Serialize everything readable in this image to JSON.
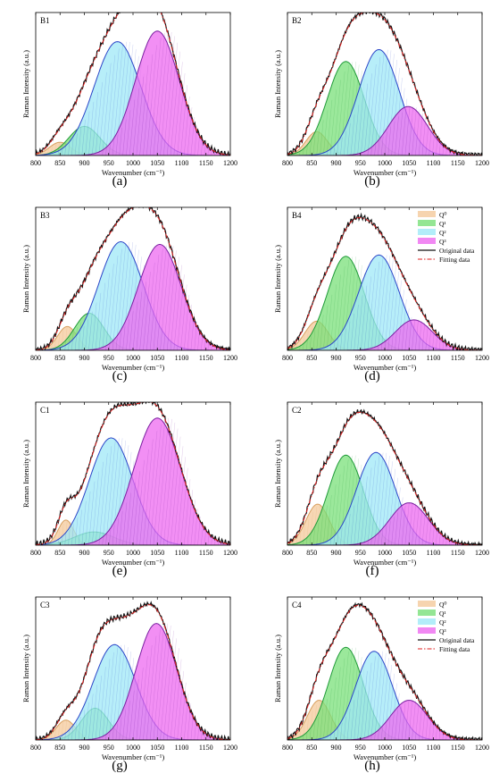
{
  "figure": {
    "captions": [
      "(a)",
      "(b)",
      "(c)",
      "(d)",
      "(e)",
      "(f)",
      "(g)",
      "(h)"
    ]
  },
  "colors": {
    "Q0": "#f4c99b",
    "Q1": "#79e079",
    "Q2": "#9fe8f7",
    "Q3": "#ee6af0",
    "Q0_line": "#d8a060",
    "Q1_line": "#1f9a38",
    "Q2_line": "#2b45c8",
    "Q3_line": "#7a1fa0",
    "original": "#111111",
    "fitting": "#e02020"
  },
  "chart_data": [
    {
      "type": "area",
      "panel_label": "B1",
      "caption": "(a)",
      "xlabel": "Wavenumber (cm⁻¹)",
      "ylabel": "Raman Intensity (a.u.)",
      "xlim": [
        800,
        1200
      ],
      "ylim": [
        0,
        1.08
      ],
      "xticks": [
        800,
        850,
        900,
        950,
        1000,
        1050,
        1100,
        1150,
        1200
      ],
      "legend": null,
      "series": [
        {
          "name": "Q⁰",
          "center": 850,
          "amplitude": 0.1,
          "width": 22
        },
        {
          "name": "Q¹",
          "center": 900,
          "amplitude": 0.22,
          "width": 32
        },
        {
          "name": "Q²",
          "center": 968,
          "amplitude": 0.86,
          "width": 48
        },
        {
          "name": "Q³",
          "center": 1050,
          "amplitude": 0.94,
          "width": 45
        }
      ]
    },
    {
      "type": "area",
      "panel_label": "B2",
      "caption": "(b)",
      "xlabel": "Wavenumber (cm⁻¹)",
      "ylabel": "Raman Intensity (a.u.)",
      "xlim": [
        800,
        1200
      ],
      "ylim": [
        0,
        1.08
      ],
      "xticks": [
        800,
        850,
        900,
        950,
        1000,
        1050,
        1100,
        1150,
        1200
      ],
      "legend": null,
      "series": [
        {
          "name": "Q⁰",
          "center": 860,
          "amplitude": 0.18,
          "width": 22
        },
        {
          "name": "Q¹",
          "center": 920,
          "amplitude": 0.71,
          "width": 38
        },
        {
          "name": "Q²",
          "center": 988,
          "amplitude": 0.8,
          "width": 42
        },
        {
          "name": "Q³",
          "center": 1048,
          "amplitude": 0.37,
          "width": 40
        }
      ]
    },
    {
      "type": "area",
      "panel_label": "B3",
      "caption": "(c)",
      "xlabel": "Wavenumber (cm⁻¹)",
      "ylabel": "Raman Intensity (a.u.)",
      "xlim": [
        800,
        1200
      ],
      "ylim": [
        0,
        1.08
      ],
      "xticks": [
        800,
        850,
        900,
        950,
        1000,
        1050,
        1100,
        1150,
        1200
      ],
      "legend": null,
      "series": [
        {
          "name": "Q⁰",
          "center": 865,
          "amplitude": 0.18,
          "width": 20
        },
        {
          "name": "Q¹",
          "center": 910,
          "amplitude": 0.28,
          "width": 30
        },
        {
          "name": "Q²",
          "center": 975,
          "amplitude": 0.82,
          "width": 46
        },
        {
          "name": "Q³",
          "center": 1055,
          "amplitude": 0.8,
          "width": 44
        }
      ]
    },
    {
      "type": "area",
      "panel_label": "B4",
      "caption": "(d)",
      "xlabel": "Wavenumber (cm⁻¹)",
      "ylabel": "Raman Intensity (a.u.)",
      "xlim": [
        800,
        1200
      ],
      "ylim": [
        0,
        1.08
      ],
      "xticks": [
        800,
        850,
        900,
        950,
        1000,
        1050,
        1100,
        1150,
        1200
      ],
      "legend": {
        "placement": "top-right",
        "entries": [
          "Q⁰",
          "Q¹",
          "Q²",
          "Q³",
          "Original data",
          "Fitting data"
        ]
      },
      "series": [
        {
          "name": "Q⁰",
          "center": 860,
          "amplitude": 0.22,
          "width": 24
        },
        {
          "name": "Q¹",
          "center": 920,
          "amplitude": 0.71,
          "width": 38
        },
        {
          "name": "Q²",
          "center": 988,
          "amplitude": 0.72,
          "width": 42
        },
        {
          "name": "Q³",
          "center": 1060,
          "amplitude": 0.23,
          "width": 38
        }
      ]
    },
    {
      "type": "area",
      "panel_label": "C1",
      "caption": "(e)",
      "xlabel": "Wavenumber (cm⁻¹)",
      "ylabel": "Raman Intensity (a.u.)",
      "xlim": [
        800,
        1200
      ],
      "ylim": [
        0,
        1.08
      ],
      "xticks": [
        800,
        850,
        900,
        950,
        1000,
        1050,
        1100,
        1150,
        1200
      ],
      "legend": null,
      "series": [
        {
          "name": "Q⁰",
          "center": 862,
          "amplitude": 0.19,
          "width": 16
        },
        {
          "name": "Q¹",
          "center": 920,
          "amplitude": 0.1,
          "width": 40
        },
        {
          "name": "Q²",
          "center": 955,
          "amplitude": 0.81,
          "width": 45
        },
        {
          "name": "Q³",
          "center": 1050,
          "amplitude": 0.96,
          "width": 48
        }
      ]
    },
    {
      "type": "area",
      "panel_label": "C2",
      "caption": "(f)",
      "xlabel": "Wavenumber (cm⁻¹)",
      "ylabel": "Raman Intensity (a.u.)",
      "xlim": [
        800,
        1200
      ],
      "ylim": [
        0,
        1.08
      ],
      "xticks": [
        800,
        850,
        900,
        950,
        1000,
        1050,
        1100,
        1150,
        1200
      ],
      "legend": null,
      "series": [
        {
          "name": "Q⁰",
          "center": 862,
          "amplitude": 0.31,
          "width": 24
        },
        {
          "name": "Q¹",
          "center": 920,
          "amplitude": 0.68,
          "width": 36
        },
        {
          "name": "Q²",
          "center": 982,
          "amplitude": 0.7,
          "width": 40
        },
        {
          "name": "Q³",
          "center": 1050,
          "amplitude": 0.32,
          "width": 40
        }
      ]
    },
    {
      "type": "area",
      "panel_label": "C3",
      "caption": "(g)",
      "xlabel": "Wavenumber (cm⁻¹)",
      "ylabel": "Raman Intensity (a.u.)",
      "xlim": [
        800,
        1200
      ],
      "ylim": [
        0,
        1.08
      ],
      "xticks": [
        800,
        850,
        900,
        950,
        1000,
        1050,
        1100,
        1150,
        1200
      ],
      "legend": null,
      "series": [
        {
          "name": "Q⁰",
          "center": 862,
          "amplitude": 0.15,
          "width": 20
        },
        {
          "name": "Q¹",
          "center": 922,
          "amplitude": 0.24,
          "width": 28
        },
        {
          "name": "Q²",
          "center": 962,
          "amplitude": 0.72,
          "width": 44
        },
        {
          "name": "Q³",
          "center": 1048,
          "amplitude": 0.88,
          "width": 42
        }
      ]
    },
    {
      "type": "area",
      "panel_label": "C4",
      "caption": "(h)",
      "xlabel": "Wavenumber (cm⁻¹)",
      "ylabel": "Raman Intensity (a.u.)",
      "xlim": [
        800,
        1200
      ],
      "ylim": [
        0,
        1.08
      ],
      "xticks": [
        800,
        850,
        900,
        950,
        1000,
        1050,
        1100,
        1150,
        1200
      ],
      "legend": {
        "placement": "top-right",
        "entries": [
          "Q⁰",
          "Q¹",
          "Q²",
          "Q³",
          "Original data",
          "Fitting data"
        ]
      },
      "series": [
        {
          "name": "Q⁰",
          "center": 865,
          "amplitude": 0.3,
          "width": 24
        },
        {
          "name": "Q¹",
          "center": 920,
          "amplitude": 0.7,
          "width": 36
        },
        {
          "name": "Q²",
          "center": 978,
          "amplitude": 0.67,
          "width": 38
        },
        {
          "name": "Q³",
          "center": 1050,
          "amplitude": 0.3,
          "width": 38
        }
      ]
    }
  ]
}
